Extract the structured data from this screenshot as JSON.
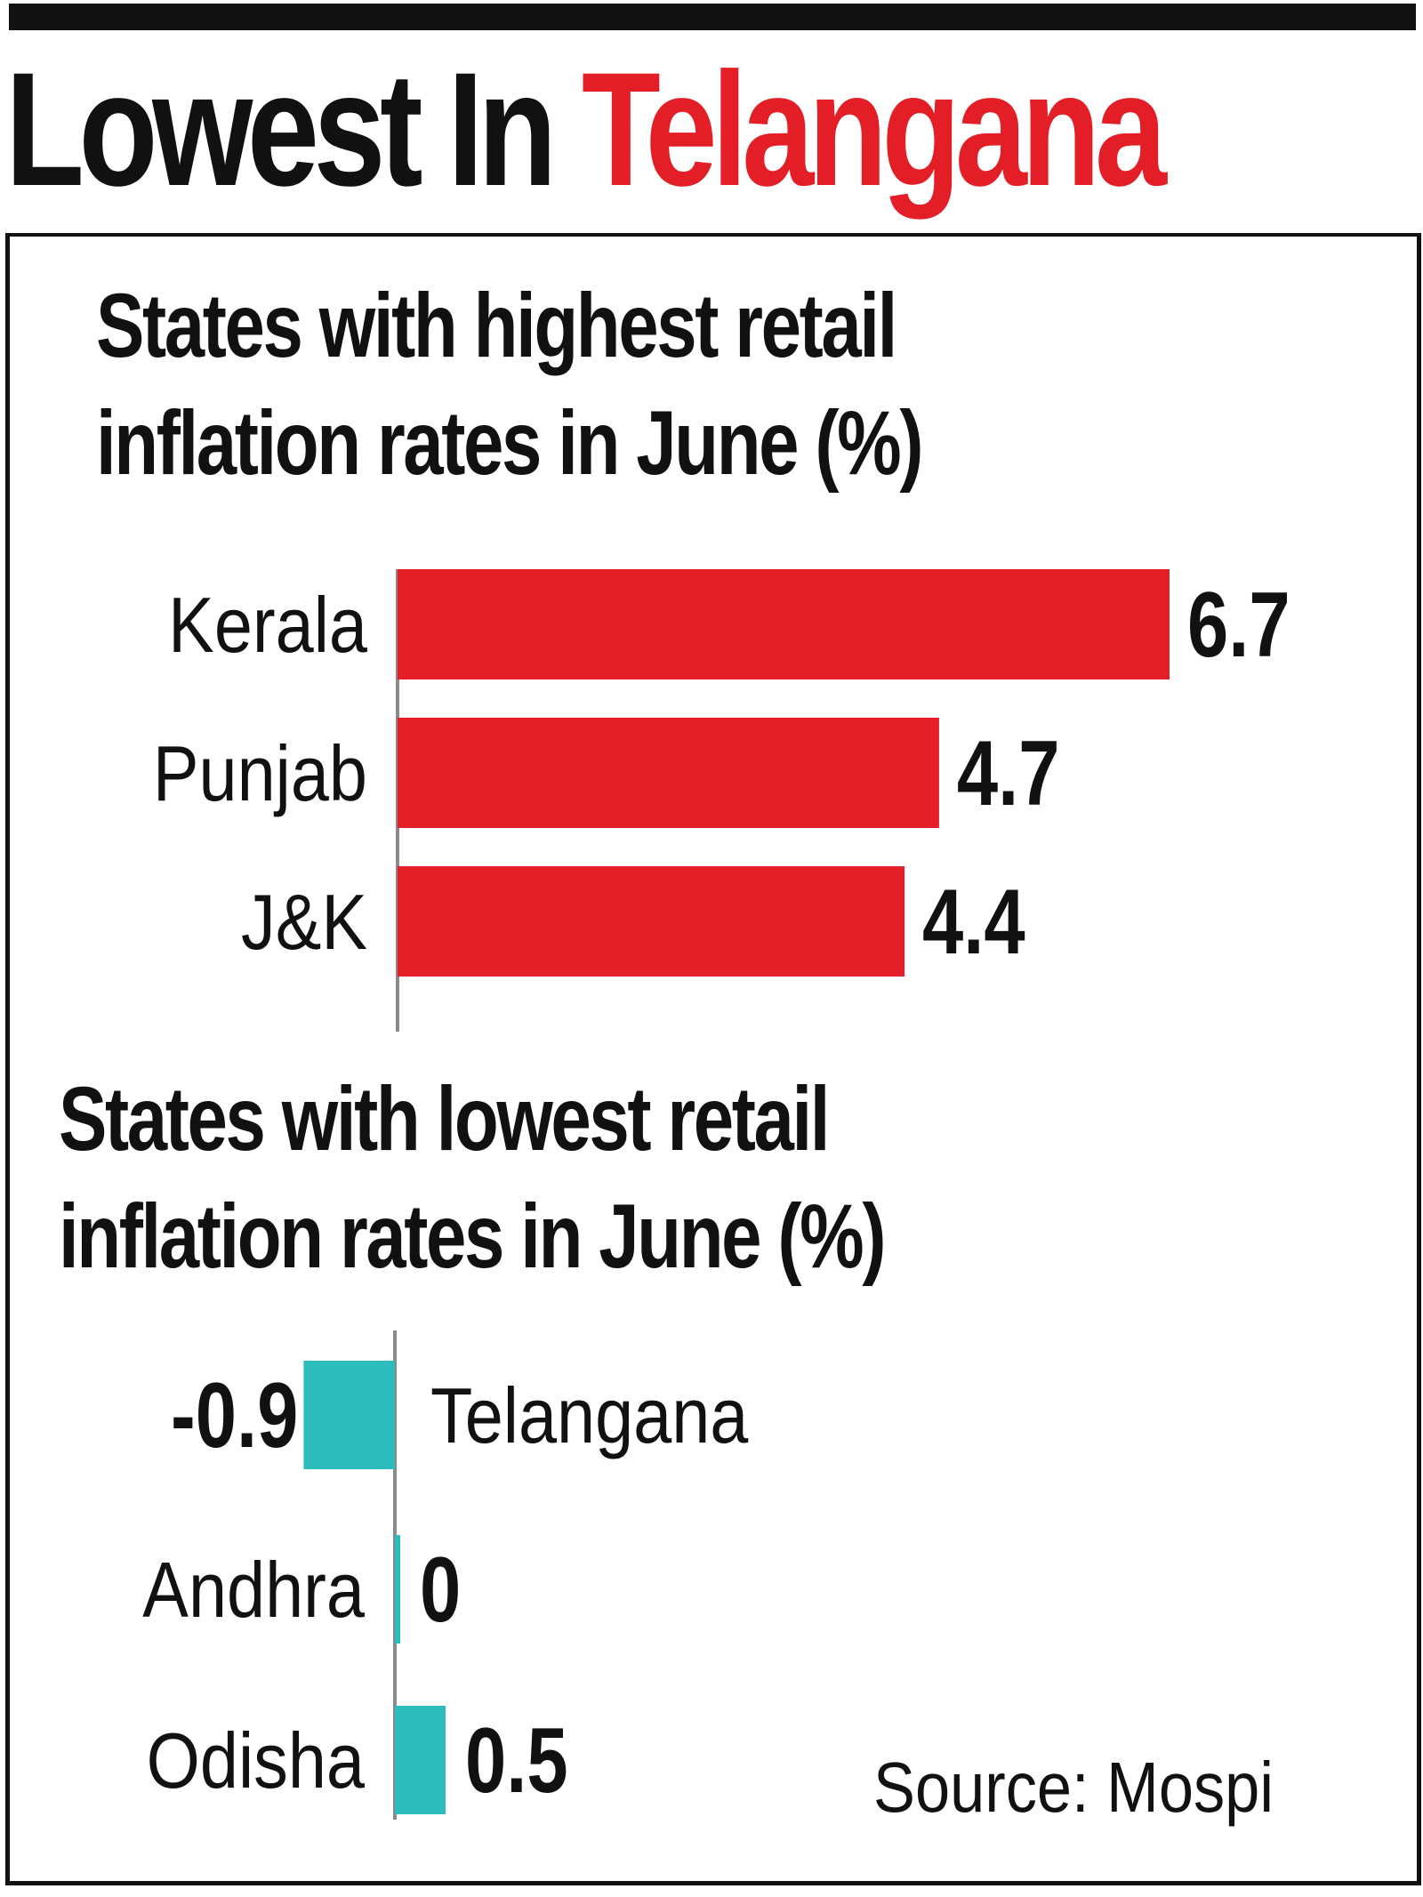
{
  "headline": {
    "part_black": "Lowest In",
    "part_red": "Telangana"
  },
  "colors": {
    "highest_bar": "#e41e26",
    "lowest_bar": "#2cbcbc",
    "text": "#111111",
    "axis": "#8a8a8a"
  },
  "chart_data": [
    {
      "type": "bar",
      "orientation": "horizontal",
      "title_lines": [
        "States with highest retail",
        "inflation rates in June (%)"
      ],
      "categories": [
        "Kerala",
        "Punjab",
        "J&K"
      ],
      "values": [
        6.7,
        4.7,
        4.4
      ],
      "value_labels": [
        "6.7",
        "4.7",
        "4.4"
      ],
      "xlim": [
        0,
        6.7
      ],
      "grid": false,
      "legend": "none"
    },
    {
      "type": "bar",
      "orientation": "horizontal",
      "title_lines": [
        "States with lowest retail",
        "inflation rates in June (%)"
      ],
      "categories": [
        "Telangana",
        "Andhra",
        "Odisha"
      ],
      "values": [
        -0.9,
        0,
        0.5
      ],
      "value_labels": [
        "-0.9",
        "0",
        "0.5"
      ],
      "xlim": [
        -0.9,
        0.5
      ],
      "grid": false,
      "legend": "none"
    }
  ],
  "source": "Source: Mospi"
}
